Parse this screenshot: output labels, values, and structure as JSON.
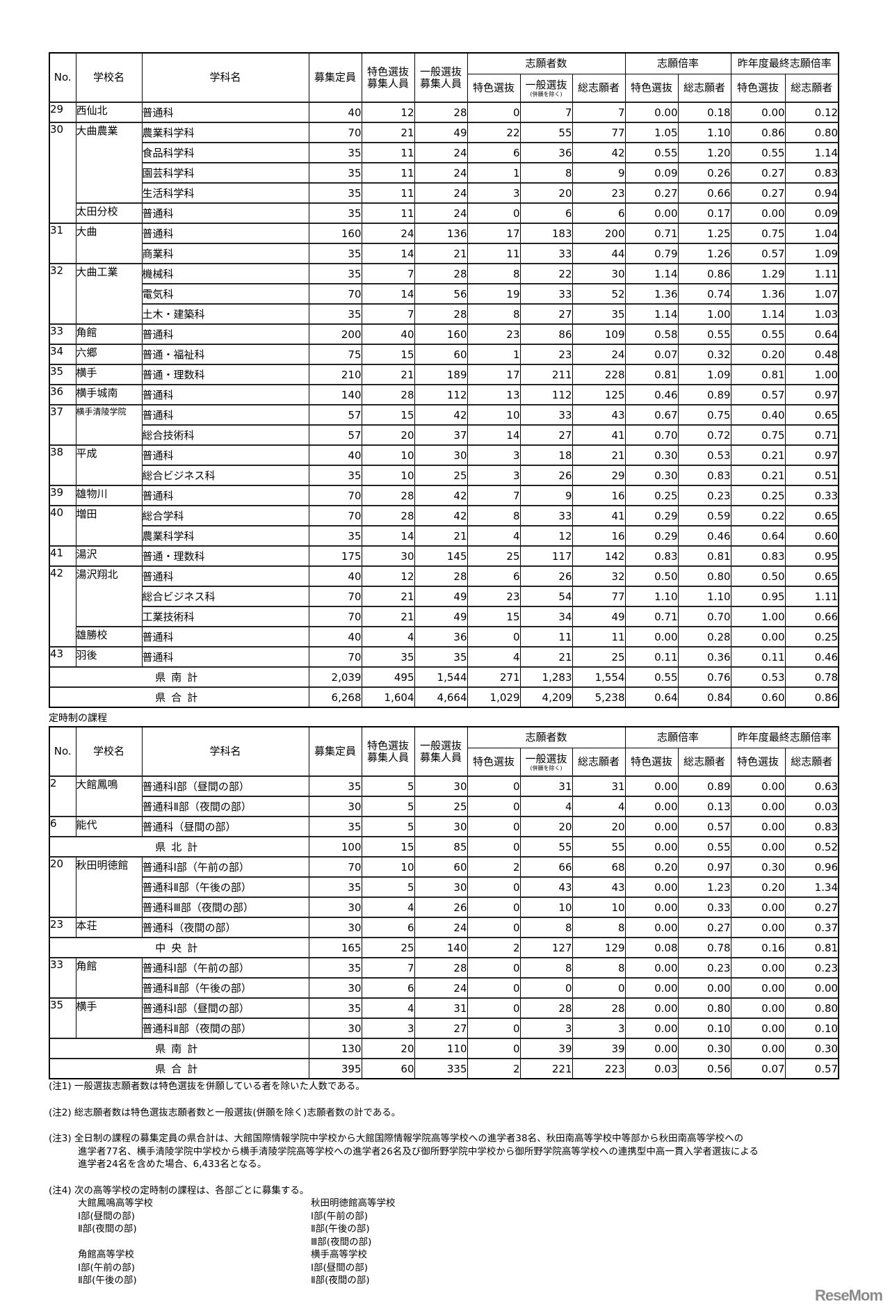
{
  "header": {
    "no": "No.",
    "school": "学校名",
    "dept": "学科名",
    "capacity": "募集定員",
    "tokushoku_recruit": [
      "特色選抜",
      "募集人員"
    ],
    "ippan_recruit": [
      "一般選抜",
      "募集人員"
    ],
    "applicants": "志願者数",
    "applicants_sub": [
      "特色選抜",
      "一般選抜",
      "総志願者"
    ],
    "applicants_sub_note": "(併願を除く)",
    "ratio": "志願倍率",
    "ratio_sub": [
      "特色選抜",
      "総志願者"
    ],
    "last_ratio": "昨年度最終志願倍率",
    "last_ratio_sub": [
      "特色選抜",
      "総志願者"
    ]
  },
  "table1": {
    "rows": [
      {
        "no": "29",
        "school": "西仙北",
        "dept": "普通科",
        "v": [
          "40",
          "12",
          "28",
          "0",
          "7",
          "7",
          "0.00",
          "0.18",
          "0.00",
          "0.12"
        ]
      },
      {
        "no": "30",
        "school": "大曲農業",
        "dept": "農業科学科",
        "v": [
          "70",
          "21",
          "49",
          "22",
          "55",
          "77",
          "1.05",
          "1.10",
          "0.86",
          "0.80"
        ]
      },
      {
        "no": null,
        "school": null,
        "dept": "食品科学科",
        "v": [
          "35",
          "11",
          "24",
          "6",
          "36",
          "42",
          "0.55",
          "1.20",
          "0.55",
          "1.14"
        ]
      },
      {
        "no": null,
        "school": null,
        "dept": "園芸科学科",
        "v": [
          "35",
          "11",
          "24",
          "1",
          "8",
          "9",
          "0.09",
          "0.26",
          "0.27",
          "0.83"
        ]
      },
      {
        "no": null,
        "school": null,
        "dept": "生活科学科",
        "v": [
          "35",
          "11",
          "24",
          "3",
          "20",
          "23",
          "0.27",
          "0.66",
          "0.27",
          "0.94"
        ]
      },
      {
        "no": null,
        "school": "太田分校",
        "dept": "普通科",
        "v": [
          "35",
          "11",
          "24",
          "0",
          "6",
          "6",
          "0.00",
          "0.17",
          "0.00",
          "0.09"
        ]
      },
      {
        "no": "31",
        "school": "大曲",
        "dept": "普通科",
        "v": [
          "160",
          "24",
          "136",
          "17",
          "183",
          "200",
          "0.71",
          "1.25",
          "0.75",
          "1.04"
        ]
      },
      {
        "no": null,
        "school": null,
        "dept": "商業科",
        "v": [
          "35",
          "14",
          "21",
          "11",
          "33",
          "44",
          "0.79",
          "1.26",
          "0.57",
          "1.09"
        ]
      },
      {
        "no": "32",
        "school": "大曲工業",
        "dept": "機械科",
        "v": [
          "35",
          "7",
          "28",
          "8",
          "22",
          "30",
          "1.14",
          "0.86",
          "1.29",
          "1.11"
        ]
      },
      {
        "no": null,
        "school": null,
        "dept": "電気科",
        "v": [
          "70",
          "14",
          "56",
          "19",
          "33",
          "52",
          "1.36",
          "0.74",
          "1.36",
          "1.07"
        ]
      },
      {
        "no": null,
        "school": null,
        "dept": "土木・建築科",
        "v": [
          "35",
          "7",
          "28",
          "8",
          "27",
          "35",
          "1.14",
          "1.00",
          "1.14",
          "1.03"
        ]
      },
      {
        "no": "33",
        "school": "角館",
        "dept": "普通科",
        "v": [
          "200",
          "40",
          "160",
          "23",
          "86",
          "109",
          "0.58",
          "0.55",
          "0.55",
          "0.64"
        ]
      },
      {
        "no": "34",
        "school": "六郷",
        "dept": "普通・福祉科",
        "v": [
          "75",
          "15",
          "60",
          "1",
          "23",
          "24",
          "0.07",
          "0.32",
          "0.20",
          "0.48"
        ]
      },
      {
        "no": "35",
        "school": "横手",
        "dept": "普通・理数科",
        "v": [
          "210",
          "21",
          "189",
          "17",
          "211",
          "228",
          "0.81",
          "1.09",
          "0.81",
          "1.00"
        ]
      },
      {
        "no": "36",
        "school": "横手城南",
        "dept": "普通科",
        "v": [
          "140",
          "28",
          "112",
          "13",
          "112",
          "125",
          "0.46",
          "0.89",
          "0.57",
          "0.97"
        ]
      },
      {
        "no": "37",
        "school": "横手清陵学院",
        "dept": "普通科",
        "v": [
          "57",
          "15",
          "42",
          "10",
          "33",
          "43",
          "0.67",
          "0.75",
          "0.40",
          "0.65"
        ]
      },
      {
        "no": null,
        "school": null,
        "dept": "総合技術科",
        "v": [
          "57",
          "20",
          "37",
          "14",
          "27",
          "41",
          "0.70",
          "0.72",
          "0.75",
          "0.71"
        ]
      },
      {
        "no": "38",
        "school": "平成",
        "dept": "普通科",
        "v": [
          "40",
          "10",
          "30",
          "3",
          "18",
          "21",
          "0.30",
          "0.53",
          "0.21",
          "0.97"
        ]
      },
      {
        "no": null,
        "school": null,
        "dept": "総合ビジネス科",
        "v": [
          "35",
          "10",
          "25",
          "3",
          "26",
          "29",
          "0.30",
          "0.83",
          "0.21",
          "0.51"
        ]
      },
      {
        "no": "39",
        "school": "雄物川",
        "dept": "普通科",
        "v": [
          "70",
          "28",
          "42",
          "7",
          "9",
          "16",
          "0.25",
          "0.23",
          "0.25",
          "0.33"
        ]
      },
      {
        "no": "40",
        "school": "増田",
        "dept": "総合学科",
        "v": [
          "70",
          "28",
          "42",
          "8",
          "33",
          "41",
          "0.29",
          "0.59",
          "0.22",
          "0.65"
        ]
      },
      {
        "no": null,
        "school": null,
        "dept": "農業科学科",
        "v": [
          "35",
          "14",
          "21",
          "4",
          "12",
          "16",
          "0.29",
          "0.46",
          "0.64",
          "0.60"
        ]
      },
      {
        "no": "41",
        "school": "湯沢",
        "dept": "普通・理数科",
        "v": [
          "175",
          "30",
          "145",
          "25",
          "117",
          "142",
          "0.83",
          "0.81",
          "0.83",
          "0.95"
        ]
      },
      {
        "no": "42",
        "school": "湯沢翔北",
        "dept": "普通科",
        "v": [
          "40",
          "12",
          "28",
          "6",
          "26",
          "32",
          "0.50",
          "0.80",
          "0.50",
          "0.65"
        ]
      },
      {
        "no": null,
        "school": null,
        "dept": "総合ビジネス科",
        "v": [
          "70",
          "21",
          "49",
          "23",
          "54",
          "77",
          "1.10",
          "1.10",
          "0.95",
          "1.11"
        ]
      },
      {
        "no": null,
        "school": null,
        "dept": "工業技術科",
        "v": [
          "70",
          "21",
          "49",
          "15",
          "34",
          "49",
          "0.71",
          "0.70",
          "1.00",
          "0.66"
        ]
      },
      {
        "no": null,
        "school": "雄勝校",
        "dept": "普通科",
        "v": [
          "40",
          "4",
          "36",
          "0",
          "11",
          "11",
          "0.00",
          "0.28",
          "0.00",
          "0.25"
        ]
      },
      {
        "no": "43",
        "school": "羽後",
        "dept": "普通科",
        "v": [
          "70",
          "35",
          "35",
          "4",
          "21",
          "25",
          "0.11",
          "0.36",
          "0.11",
          "0.46"
        ]
      },
      {
        "total": "県南計",
        "v": [
          "2,039",
          "495",
          "1,544",
          "271",
          "1,283",
          "1,554",
          "0.55",
          "0.76",
          "0.53",
          "0.78"
        ]
      },
      {
        "total": "県合計",
        "v": [
          "6,268",
          "1,604",
          "4,664",
          "1,029",
          "4,209",
          "5,238",
          "0.64",
          "0.84",
          "0.60",
          "0.86"
        ]
      }
    ]
  },
  "section2_title": "定時制の課程",
  "table2": {
    "rows": [
      {
        "no": "2",
        "school": "大館鳳鳴",
        "dept": "普通科Ⅰ部（昼間の部）",
        "v": [
          "35",
          "5",
          "30",
          "0",
          "31",
          "31",
          "0.00",
          "0.89",
          "0.00",
          "0.63"
        ]
      },
      {
        "no": null,
        "school": null,
        "dept": "普通科Ⅱ部（夜間の部）",
        "v": [
          "30",
          "5",
          "25",
          "0",
          "4",
          "4",
          "0.00",
          "0.13",
          "0.00",
          "0.03"
        ]
      },
      {
        "no": "6",
        "school": "能代",
        "dept": "普通科（昼間の部）",
        "v": [
          "35",
          "5",
          "30",
          "0",
          "20",
          "20",
          "0.00",
          "0.57",
          "0.00",
          "0.83"
        ]
      },
      {
        "total": "県北計",
        "v": [
          "100",
          "15",
          "85",
          "0",
          "55",
          "55",
          "0.00",
          "0.55",
          "0.00",
          "0.52"
        ]
      },
      {
        "no": "20",
        "school": "秋田明徳館",
        "dept": "普通科Ⅰ部（午前の部）",
        "v": [
          "70",
          "10",
          "60",
          "2",
          "66",
          "68",
          "0.20",
          "0.97",
          "0.30",
          "0.96"
        ]
      },
      {
        "no": null,
        "school": null,
        "dept": "普通科Ⅱ部（午後の部）",
        "v": [
          "35",
          "5",
          "30",
          "0",
          "43",
          "43",
          "0.00",
          "1.23",
          "0.20",
          "1.34"
        ]
      },
      {
        "no": null,
        "school": null,
        "dept": "普通科Ⅲ部（夜間の部）",
        "v": [
          "30",
          "4",
          "26",
          "0",
          "10",
          "10",
          "0.00",
          "0.33",
          "0.00",
          "0.27"
        ]
      },
      {
        "no": "23",
        "school": "本荘",
        "dept": "普通科（夜間の部）",
        "v": [
          "30",
          "6",
          "24",
          "0",
          "8",
          "8",
          "0.00",
          "0.27",
          "0.00",
          "0.37"
        ]
      },
      {
        "total": "中央計",
        "v": [
          "165",
          "25",
          "140",
          "2",
          "127",
          "129",
          "0.08",
          "0.78",
          "0.16",
          "0.81"
        ]
      },
      {
        "no": "33",
        "school": "角館",
        "dept": "普通科Ⅰ部（午前の部）",
        "v": [
          "35",
          "7",
          "28",
          "0",
          "8",
          "8",
          "0.00",
          "0.23",
          "0.00",
          "0.23"
        ]
      },
      {
        "no": null,
        "school": null,
        "dept": "普通科Ⅱ部（午後の部）",
        "v": [
          "30",
          "6",
          "24",
          "0",
          "0",
          "0",
          "0.00",
          "0.00",
          "0.00",
          "0.00"
        ]
      },
      {
        "no": "35",
        "school": "横手",
        "dept": "普通科Ⅰ部（昼間の部）",
        "v": [
          "35",
          "4",
          "31",
          "0",
          "28",
          "28",
          "0.00",
          "0.80",
          "0.00",
          "0.80"
        ]
      },
      {
        "no": null,
        "school": null,
        "dept": "普通科Ⅱ部（夜間の部）",
        "v": [
          "30",
          "3",
          "27",
          "0",
          "3",
          "3",
          "0.00",
          "0.10",
          "0.00",
          "0.10"
        ]
      },
      {
        "total": "県南計",
        "v": [
          "130",
          "20",
          "110",
          "0",
          "39",
          "39",
          "0.00",
          "0.30",
          "0.00",
          "0.30"
        ]
      },
      {
        "total": "県合計",
        "v": [
          "395",
          "60",
          "335",
          "2",
          "221",
          "223",
          "0.03",
          "0.56",
          "0.07",
          "0.57"
        ]
      }
    ]
  },
  "notes": {
    "n1": "(注1) 一般選抜志願者数は特色選抜を併願している者を除いた人数である。",
    "n2": "(注2) 総志願者数は特色選抜志願者数と一般選抜(併願を除く)志願者数の計である。",
    "n3": [
      "(注3) 全日制の課程の募集定員の県合計は、大館国際情報学院中学校から大館国際情報学院高等学校への進学者38名、秋田南高等学校中等部から秋田南高等学校への",
      "進学者77名、横手清陵学院中学校から横手清陵学院高等学校への進学者26名及び御所野学院中学校から御所野学院高等学校への連携型中高一貫入学者選抜による",
      "進学者24名を含めた場合、6,433名となる。"
    ],
    "n4": "(注4) 次の高等学校の定時制の課程は、各部ごとに募集する。",
    "n4_left": [
      "大館鳳鳴高等学校",
      "Ⅰ部(昼間の部)",
      "Ⅱ部(夜間の部)",
      "",
      "角館高等学校",
      "Ⅰ部(午前の部)",
      "Ⅱ部(午後の部)"
    ],
    "n4_right": [
      "秋田明徳館高等学校",
      "Ⅰ部(午前の部)",
      "Ⅱ部(午後の部)",
      "Ⅲ部(夜間の部)",
      "横手高等学校",
      "Ⅰ部(昼間の部)",
      "Ⅱ部(夜間の部)"
    ]
  },
  "watermark": "ReseMom"
}
